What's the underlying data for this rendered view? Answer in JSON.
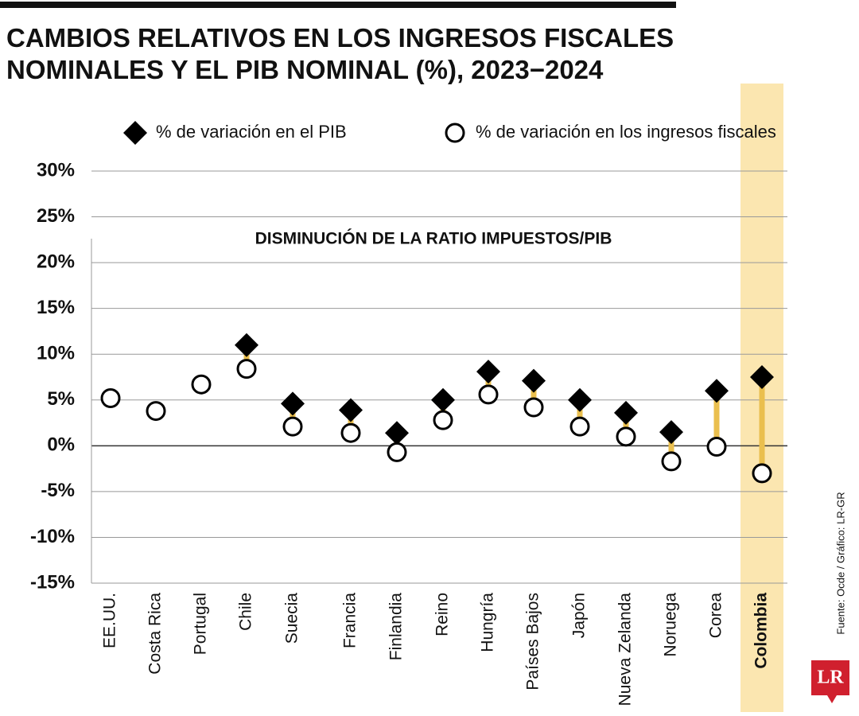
{
  "chart_data": {
    "type": "dot",
    "title": "CAMBIOS RELATIVOS EN LOS INGRESOS FISCALES NOMINALES Y EL PIB NOMINAL (%), 2023−2024",
    "annotation": "DISMINUCIÓN DE LA RATIO IMPUESTOS/PIB",
    "source": "Fuente: Ocde / Gráfico: LR-GR",
    "logo": "LR",
    "categories": [
      "EE.UU.",
      "Costa Rica",
      "Portugal",
      "Chile",
      "Suecia",
      "Francia",
      "Finlandia",
      "Reino",
      "Hungría",
      "Países Bajos",
      "Japón",
      "Nueva Zelanda",
      "Noruega",
      "Corea",
      "Colombia"
    ],
    "highlight": "Colombia",
    "highlight_color": "#fbe6b0",
    "connector_color": "#eabf4e",
    "series": [
      {
        "name": "% de variación en el PIB",
        "color": "#000000",
        "marker": "diamond",
        "values": [
          null,
          null,
          null,
          11.0,
          4.6,
          3.9,
          1.4,
          5.0,
          8.1,
          7.1,
          5.0,
          3.6,
          1.5,
          6.0,
          7.5
        ]
      },
      {
        "name": "% de variación en los ingresos fiscales",
        "color": "#ffffff",
        "marker": "circle",
        "values": [
          5.2,
          3.8,
          6.7,
          8.4,
          2.1,
          1.4,
          -0.7,
          2.8,
          5.6,
          4.2,
          2.1,
          1.0,
          -1.7,
          -0.1,
          -3.0
        ]
      }
    ],
    "ylim": [
      -15,
      30
    ],
    "yticks": [
      {
        "value": -15,
        "label": "-15%"
      },
      {
        "value": -10,
        "label": "-10%"
      },
      {
        "value": -5,
        "label": "-5%"
      },
      {
        "value": 0,
        "label": "0%"
      },
      {
        "value": 5,
        "label": "5%"
      },
      {
        "value": 10,
        "label": "10%"
      },
      {
        "value": 15,
        "label": "15%"
      },
      {
        "value": 20,
        "label": "20%"
      },
      {
        "value": 25,
        "label": "25%"
      },
      {
        "value": 30,
        "label": "30%"
      }
    ],
    "grid": true
  }
}
